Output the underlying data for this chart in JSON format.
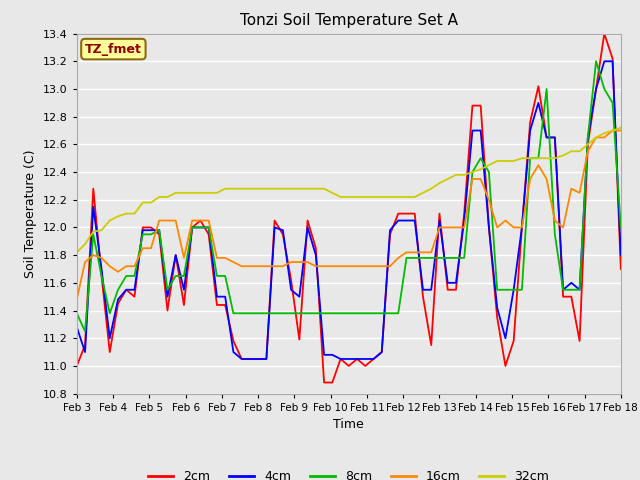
{
  "title": "Tonzi Soil Temperature Set A",
  "xlabel": "Time",
  "ylabel": "Soil Temperature (C)",
  "annotation": "TZ_fmet",
  "annotation_color": "#8B0000",
  "annotation_bg": "#FFFF99",
  "annotation_border": "#8B6914",
  "ylim": [
    10.8,
    13.4
  ],
  "xtick_labels": [
    "Feb 3",
    "Feb 4",
    "Feb 5",
    "Feb 6",
    "Feb 7",
    "Feb 8",
    "Feb 9",
    "Feb 10",
    "Feb 11",
    "Feb 12",
    "Feb 13",
    "Feb 14",
    "Feb 15",
    "Feb 16",
    "Feb 17",
    "Feb 18"
  ],
  "line_colors": {
    "2cm": "#FF0000",
    "4cm": "#0000FF",
    "8cm": "#00BB00",
    "16cm": "#FF8800",
    "32cm": "#CCCC00"
  },
  "legend_labels": [
    "2cm",
    "4cm",
    "8cm",
    "16cm",
    "32cm"
  ],
  "bg_color": "#E8E8E8",
  "grid_color": "#FFFFFF",
  "series_2cm": [
    11.0,
    11.15,
    12.28,
    11.65,
    11.1,
    11.45,
    11.55,
    11.5,
    12.0,
    12.0,
    11.95,
    11.4,
    11.8,
    11.44,
    12.0,
    12.05,
    11.95,
    11.44,
    11.44,
    11.18,
    11.05,
    11.05,
    11.05,
    11.05,
    12.05,
    11.95,
    11.62,
    11.19,
    12.05,
    11.85,
    10.88,
    10.88,
    11.05,
    11.0,
    11.05,
    11.0,
    11.05,
    11.1,
    11.95,
    12.1,
    12.1,
    12.1,
    11.5,
    11.15,
    12.1,
    11.55,
    11.55,
    12.1,
    12.88,
    12.88,
    12.0,
    11.35,
    11.0,
    11.18,
    12.0,
    12.76,
    13.02,
    12.65,
    12.65,
    11.5,
    11.5,
    11.18,
    12.6,
    13.0,
    13.4,
    13.22,
    11.7
  ],
  "series_4cm": [
    11.28,
    11.1,
    12.15,
    11.7,
    11.2,
    11.48,
    11.55,
    11.55,
    11.98,
    11.98,
    11.98,
    11.5,
    11.8,
    11.55,
    12.0,
    12.0,
    12.0,
    11.5,
    11.5,
    11.1,
    11.05,
    11.05,
    11.05,
    11.05,
    12.0,
    11.98,
    11.55,
    11.5,
    12.0,
    11.8,
    11.08,
    11.08,
    11.05,
    11.05,
    11.05,
    11.05,
    11.05,
    11.1,
    11.98,
    12.05,
    12.05,
    12.05,
    11.55,
    11.55,
    12.05,
    11.6,
    11.6,
    12.05,
    12.7,
    12.7,
    12.0,
    11.42,
    11.2,
    11.55,
    12.0,
    12.7,
    12.9,
    12.65,
    12.65,
    11.55,
    11.6,
    11.55,
    12.65,
    13.0,
    13.2,
    13.2,
    11.8
  ],
  "series_8cm": [
    11.38,
    11.25,
    11.95,
    11.65,
    11.38,
    11.55,
    11.65,
    11.65,
    11.95,
    11.95,
    11.98,
    11.55,
    11.65,
    11.65,
    12.0,
    12.0,
    12.0,
    11.65,
    11.65,
    11.38,
    11.38,
    11.38,
    11.38,
    11.38,
    11.38,
    11.38,
    11.38,
    11.38,
    11.38,
    11.38,
    11.38,
    11.38,
    11.38,
    11.38,
    11.38,
    11.38,
    11.38,
    11.38,
    11.38,
    11.38,
    11.78,
    11.78,
    11.78,
    11.78,
    11.78,
    11.78,
    11.78,
    11.78,
    12.4,
    12.5,
    12.4,
    11.55,
    11.55,
    11.55,
    11.55,
    12.5,
    12.5,
    13.0,
    11.95,
    11.55,
    11.55,
    11.55,
    12.65,
    13.2,
    13.0,
    12.9,
    12.0
  ],
  "series_16cm": [
    11.48,
    11.75,
    11.8,
    11.78,
    11.72,
    11.68,
    11.72,
    11.72,
    11.85,
    11.85,
    12.05,
    12.05,
    12.05,
    11.78,
    12.05,
    12.05,
    12.05,
    11.78,
    11.78,
    11.75,
    11.72,
    11.72,
    11.72,
    11.72,
    11.72,
    11.72,
    11.75,
    11.75,
    11.75,
    11.72,
    11.72,
    11.72,
    11.72,
    11.72,
    11.72,
    11.72,
    11.72,
    11.72,
    11.72,
    11.78,
    11.82,
    11.82,
    11.82,
    11.82,
    12.0,
    12.0,
    12.0,
    12.0,
    12.35,
    12.35,
    12.2,
    12.0,
    12.05,
    12.0,
    12.0,
    12.35,
    12.45,
    12.35,
    12.05,
    12.0,
    12.28,
    12.25,
    12.55,
    12.65,
    12.65,
    12.7,
    12.7
  ],
  "series_32cm": [
    11.82,
    11.88,
    11.97,
    11.98,
    12.05,
    12.08,
    12.1,
    12.1,
    12.18,
    12.18,
    12.22,
    12.22,
    12.25,
    12.25,
    12.25,
    12.25,
    12.25,
    12.25,
    12.28,
    12.28,
    12.28,
    12.28,
    12.28,
    12.28,
    12.28,
    12.28,
    12.28,
    12.28,
    12.28,
    12.28,
    12.28,
    12.25,
    12.22,
    12.22,
    12.22,
    12.22,
    12.22,
    12.22,
    12.22,
    12.22,
    12.22,
    12.22,
    12.25,
    12.28,
    12.32,
    12.35,
    12.38,
    12.38,
    12.4,
    12.42,
    12.45,
    12.48,
    12.48,
    12.48,
    12.5,
    12.5,
    12.5,
    12.5,
    12.5,
    12.52,
    12.55,
    12.55,
    12.6,
    12.65,
    12.68,
    12.7,
    12.72
  ]
}
